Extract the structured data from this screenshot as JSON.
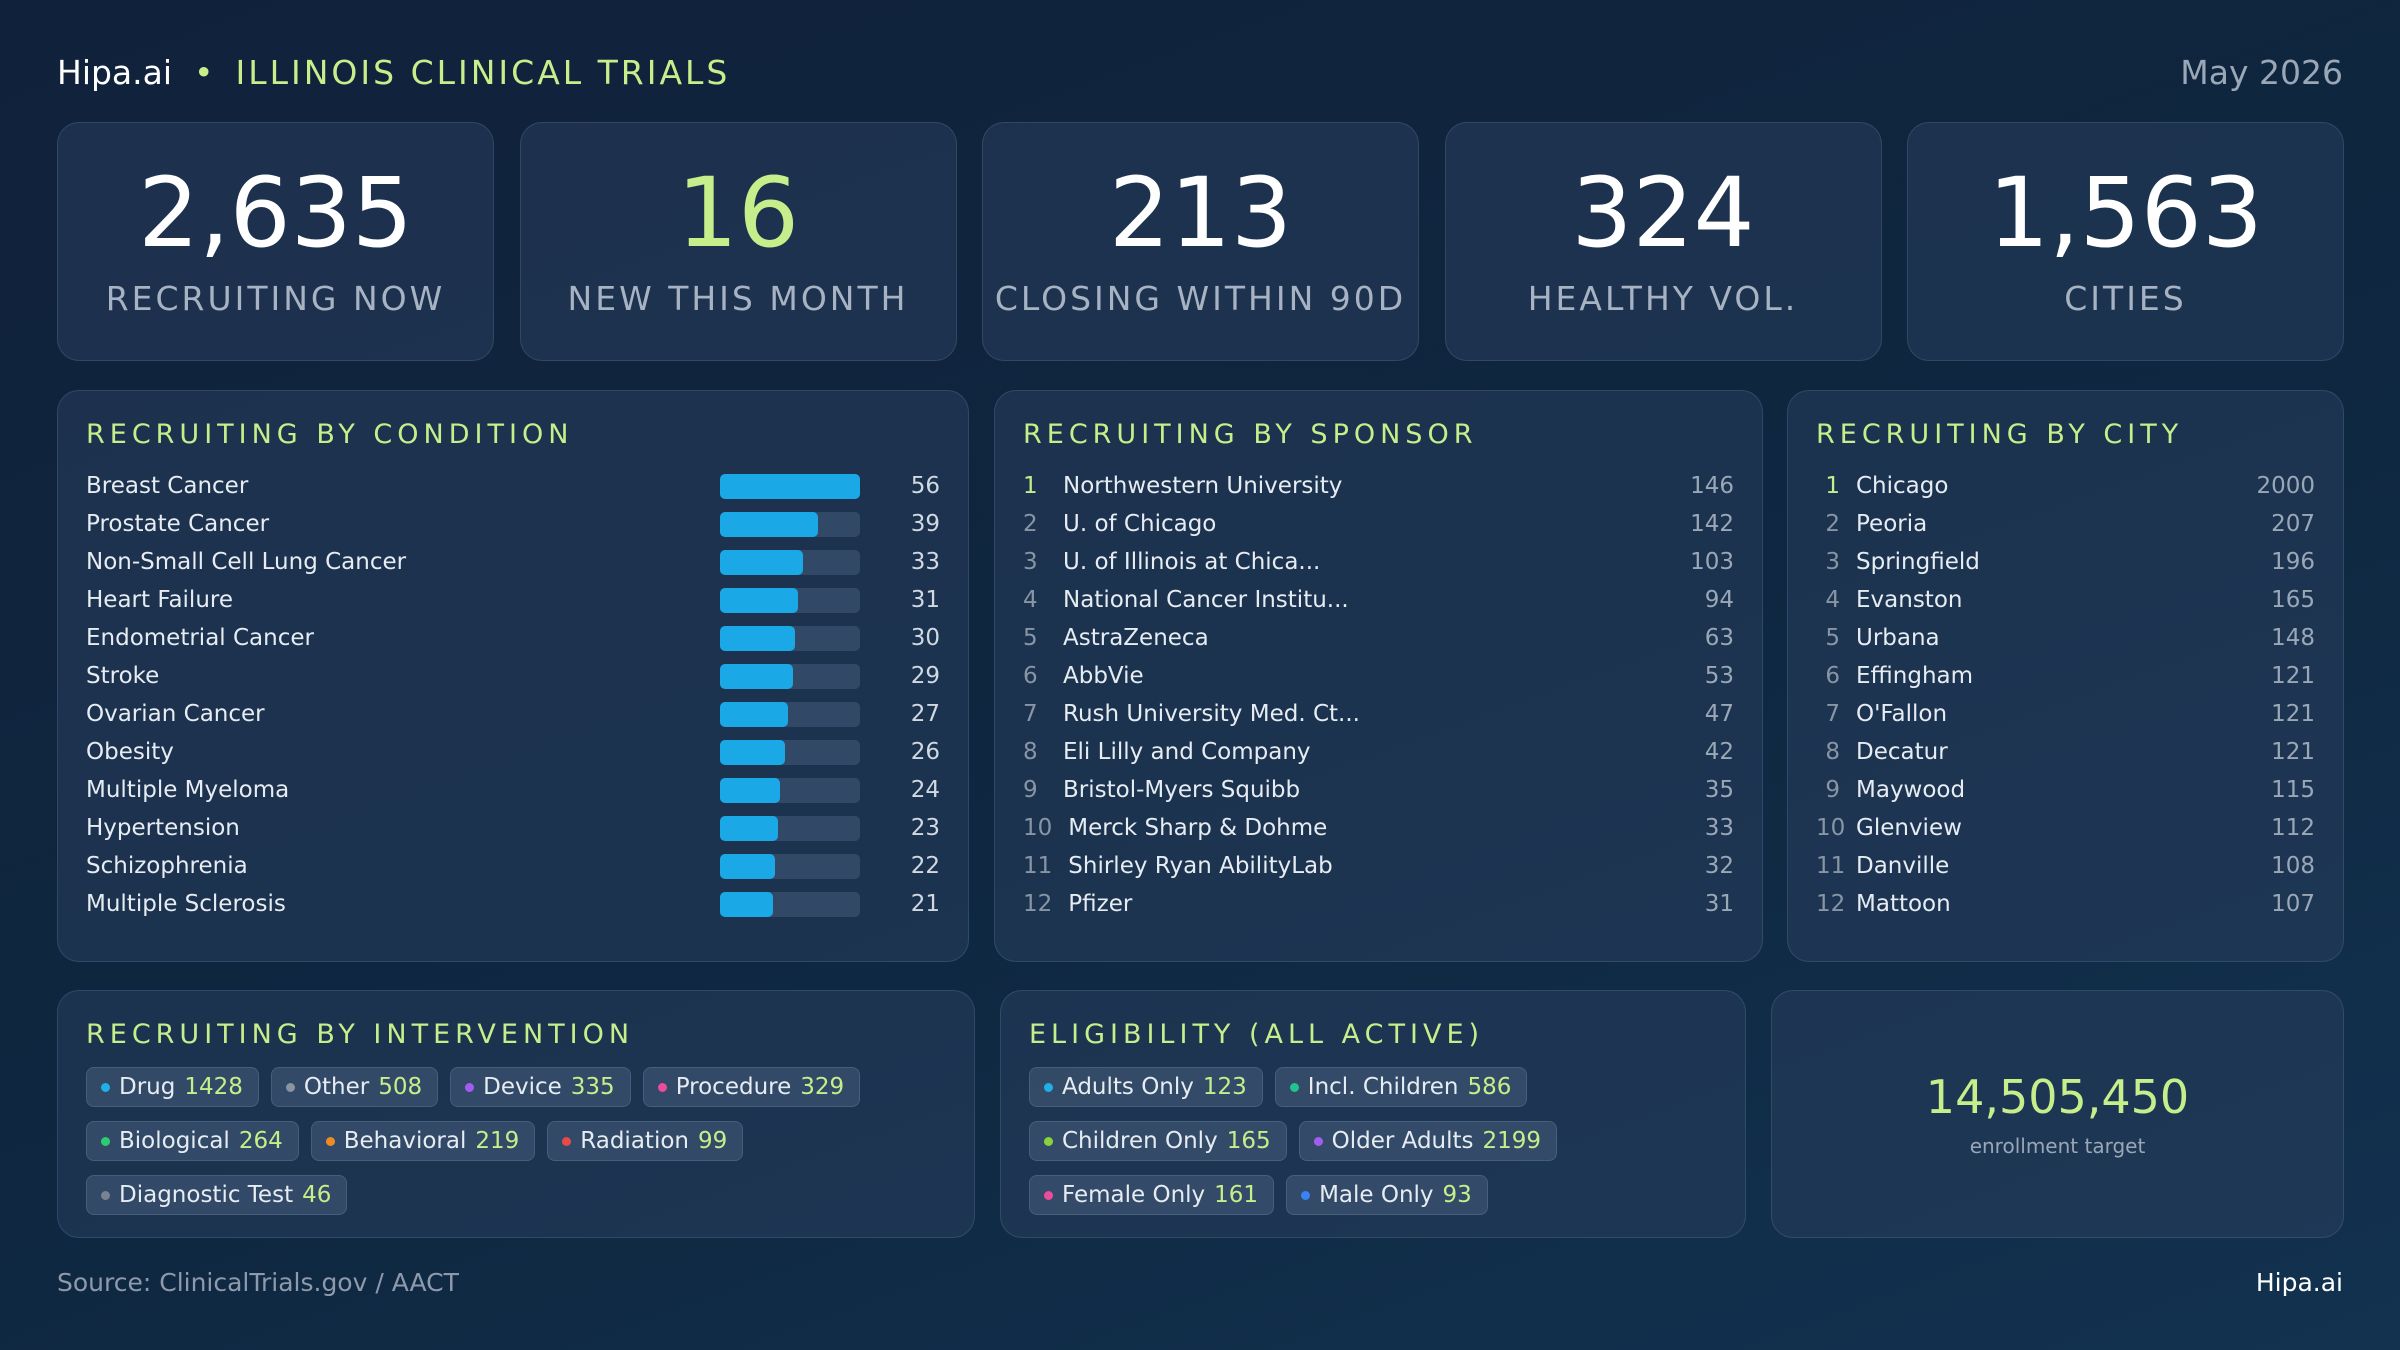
{
  "header": {
    "brand": "Hipa.ai",
    "title": "ILLINOIS CLINICAL TRIALS",
    "date": "May 2026"
  },
  "kpis": [
    {
      "value": "2,635",
      "label": "RECRUITING NOW"
    },
    {
      "value": "16",
      "label": "NEW THIS MONTH",
      "accent": true
    },
    {
      "value": "213",
      "label": "CLOSING WITHIN 90D"
    },
    {
      "value": "324",
      "label": "HEALTHY VOL."
    },
    {
      "value": "1,563",
      "label": "CITIES"
    }
  ],
  "conditions": {
    "title": "RECRUITING BY CONDITION",
    "color": "#1aa8e6",
    "items": [
      {
        "name": "Breast Cancer",
        "value": 56
      },
      {
        "name": "Prostate Cancer",
        "value": 39
      },
      {
        "name": "Non-Small Cell Lung Cancer",
        "value": 33
      },
      {
        "name": "Heart Failure",
        "value": 31
      },
      {
        "name": "Endometrial Cancer",
        "value": 30
      },
      {
        "name": "Stroke",
        "value": 29
      },
      {
        "name": "Ovarian Cancer",
        "value": 27
      },
      {
        "name": "Obesity",
        "value": 26
      },
      {
        "name": "Multiple Myeloma",
        "value": 24
      },
      {
        "name": "Hypertension",
        "value": 23
      },
      {
        "name": "Schizophrenia",
        "value": 22
      },
      {
        "name": "Multiple Sclerosis",
        "value": 21
      }
    ]
  },
  "sponsors": {
    "title": "RECRUITING BY SPONSOR",
    "items": [
      {
        "rank": 1,
        "name": "Northwestern University",
        "value": 146
      },
      {
        "rank": 2,
        "name": "U. of Chicago",
        "value": 142
      },
      {
        "rank": 3,
        "name": "U. of Illinois at Chica...",
        "value": 103
      },
      {
        "rank": 4,
        "name": "National Cancer Institu...",
        "value": 94
      },
      {
        "rank": 5,
        "name": "AstraZeneca",
        "value": 63
      },
      {
        "rank": 6,
        "name": "AbbVie",
        "value": 53
      },
      {
        "rank": 7,
        "name": "Rush University Med. Ct...",
        "value": 47
      },
      {
        "rank": 8,
        "name": "Eli Lilly and Company",
        "value": 42
      },
      {
        "rank": 9,
        "name": "Bristol-Myers Squibb",
        "value": 35
      },
      {
        "rank": 10,
        "name": "Merck Sharp & Dohme",
        "value": 33
      },
      {
        "rank": 11,
        "name": "Shirley Ryan AbilityLab",
        "value": 32
      },
      {
        "rank": 12,
        "name": "Pfizer",
        "value": 31
      }
    ]
  },
  "cities": {
    "title": "RECRUITING BY CITY",
    "items": [
      {
        "rank": 1,
        "name": "Chicago",
        "value": 2000
      },
      {
        "rank": 2,
        "name": "Peoria",
        "value": 207
      },
      {
        "rank": 3,
        "name": "Springfield",
        "value": 196
      },
      {
        "rank": 4,
        "name": "Evanston",
        "value": 165
      },
      {
        "rank": 5,
        "name": "Urbana",
        "value": 148
      },
      {
        "rank": 6,
        "name": "Effingham",
        "value": 121
      },
      {
        "rank": 7,
        "name": "O'Fallon",
        "value": 121
      },
      {
        "rank": 8,
        "name": "Decatur",
        "value": 121
      },
      {
        "rank": 9,
        "name": "Maywood",
        "value": 115
      },
      {
        "rank": 10,
        "name": "Glenview",
        "value": 112
      },
      {
        "rank": 11,
        "name": "Danville",
        "value": 108
      },
      {
        "rank": 12,
        "name": "Mattoon",
        "value": 107
      }
    ]
  },
  "intervention": {
    "title": "RECRUITING BY INTERVENTION",
    "items": [
      {
        "name": "Drug",
        "value": 1428,
        "color": "#1fb0e8"
      },
      {
        "name": "Other",
        "value": 508,
        "color": "#8a94a0"
      },
      {
        "name": "Device",
        "value": 335,
        "color": "#a35cf0"
      },
      {
        "name": "Procedure",
        "value": 329,
        "color": "#ec4c9a"
      },
      {
        "name": "Biological",
        "value": 264,
        "color": "#2ecc71"
      },
      {
        "name": "Behavioral",
        "value": 219,
        "color": "#f08a24"
      },
      {
        "name": "Radiation",
        "value": 99,
        "color": "#e84a4a"
      },
      {
        "name": "Diagnostic Test",
        "value": 46,
        "color": "#7a8290"
      }
    ]
  },
  "eligibility": {
    "title": "ELIGIBILITY (ALL ACTIVE)",
    "items": [
      {
        "name": "Adults Only",
        "value": 123,
        "color": "#1fb0e8"
      },
      {
        "name": "Incl. Children",
        "value": 586,
        "color": "#22c38e"
      },
      {
        "name": "Children Only",
        "value": 165,
        "color": "#8bd13a"
      },
      {
        "name": "Older Adults",
        "value": 2199,
        "color": "#a35cf0"
      },
      {
        "name": "Female Only",
        "value": 161,
        "color": "#ec4c9a"
      },
      {
        "name": "Male Only",
        "value": 93,
        "color": "#3b82f6"
      }
    ]
  },
  "enrollment": {
    "value": "14,505,450",
    "label": "enrollment target"
  },
  "footer": {
    "source": "Source: ClinicalTrials.gov / AACT",
    "brand": "Hipa.ai"
  }
}
